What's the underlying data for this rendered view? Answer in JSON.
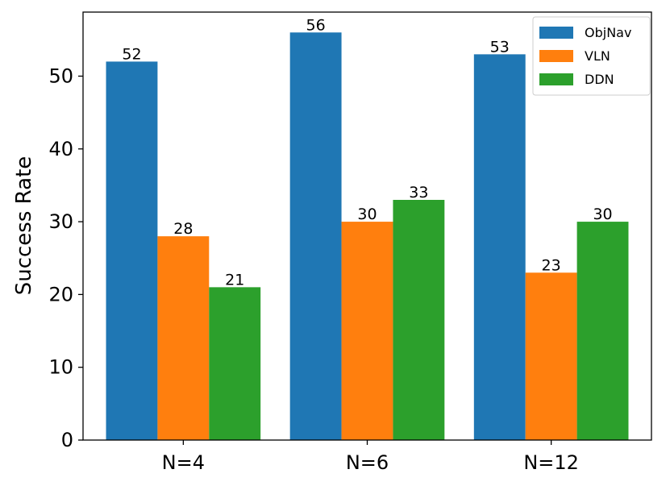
{
  "chart_data": {
    "type": "bar",
    "title": "",
    "xlabel": "",
    "ylabel": "Success Rate",
    "categories": [
      "N=4",
      "N=6",
      "N=12"
    ],
    "series": [
      {
        "name": "ObjNav",
        "color": "#1f77b4",
        "values": [
          52,
          56,
          53
        ]
      },
      {
        "name": "VLN",
        "color": "#ff7f0e",
        "values": [
          28,
          30,
          23
        ]
      },
      {
        "name": "DDN",
        "color": "#2ca02c",
        "values": [
          21,
          33,
          30
        ]
      }
    ],
    "ylim": [
      0,
      58.8
    ],
    "yticks": [
      0,
      10,
      20,
      30,
      40,
      50
    ],
    "grid": false,
    "legend_position": "top-right"
  }
}
